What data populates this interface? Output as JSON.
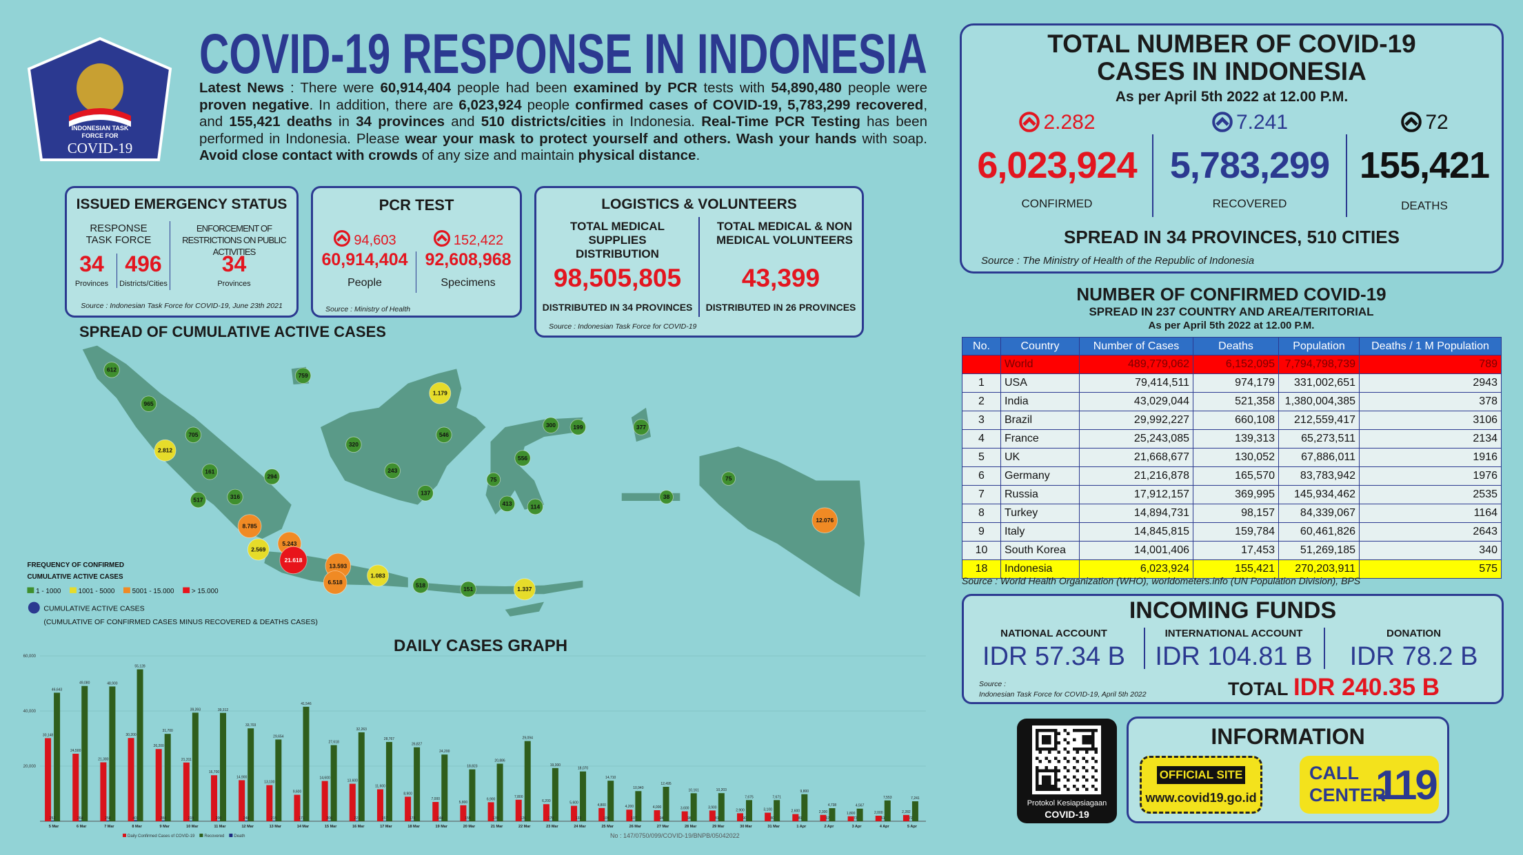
{
  "header": {
    "title": "COVID-19 RESPONSE IN INDONESIA",
    "logo_line_1": "INDONESIAN TASK",
    "logo_line_2": "FORCE FOR",
    "logo_line_3": "COVID-19"
  },
  "news": {
    "segments": [
      {
        "text": "Latest News",
        "bold": true
      },
      {
        "text": " : There were ",
        "bold": false
      },
      {
        "text": "60,914,404",
        "bold": true
      },
      {
        "text": " people had been ",
        "bold": false
      },
      {
        "text": "examined by PCR",
        "bold": true
      },
      {
        "text": " tests with ",
        "bold": false
      },
      {
        "text": "54,890,480",
        "bold": true
      },
      {
        "text": " people were ",
        "bold": false
      },
      {
        "text": "proven negative",
        "bold": true
      },
      {
        "text": ". In addition, there are ",
        "bold": false
      },
      {
        "text": "6,023,924",
        "bold": true
      },
      {
        "text": " people ",
        "bold": false
      },
      {
        "text": "confirmed cases of COVID-19, 5,783,299 recovered",
        "bold": true
      },
      {
        "text": ", and ",
        "bold": false
      },
      {
        "text": "155,421 deaths",
        "bold": true
      },
      {
        "text": " in ",
        "bold": false
      },
      {
        "text": "34 provinces",
        "bold": true
      },
      {
        "text": " and ",
        "bold": false
      },
      {
        "text": "510 districts/cities",
        "bold": true
      },
      {
        "text": " in Indonesia. ",
        "bold": false
      },
      {
        "text": "Real-Time PCR Testing",
        "bold": true
      },
      {
        "text": " has been performed in Indonesia. Please ",
        "bold": false
      },
      {
        "text": "wear your mask to protect yourself and others. Wash your hands",
        "bold": true
      },
      {
        "text": " with soap. ",
        "bold": false
      },
      {
        "text": "Avoid close contact with crowds",
        "bold": true
      },
      {
        "text": " of any size and maintain ",
        "bold": false
      },
      {
        "text": "physical distance",
        "bold": true
      },
      {
        "text": ".",
        "bold": false
      }
    ]
  },
  "emergency": {
    "title": "ISSUED EMERGENCY STATUS",
    "col1_header": "RESPONSE TASK FORCE",
    "col2_header": "ENFORCEMENT OF RESTRICTIONS ON PUBLIC ACTIVITIES",
    "provinces": "34",
    "provinces_label": "Provinces",
    "districts": "496",
    "districts_label": "Districts/Cities",
    "restriction_provinces": "34",
    "restriction_label": "Provinces",
    "source": "Source : Indonesian Task Force for COVID-19, June 23th 2021"
  },
  "pcr": {
    "title": "PCR TEST",
    "people_increase": "94,603",
    "specimen_increase": "152,422",
    "people": "60,914,404",
    "specimens": "92,608,968",
    "people_label": "People",
    "specimens_label": "Specimens",
    "source": "Source : Ministry of Health"
  },
  "logistics": {
    "title": "LOGISTICS & VOLUNTEERS",
    "supplies_header": "TOTAL MEDICAL SUPPLIES DISTRIBUTION",
    "supplies": "98,505,805",
    "supplies_note": "DISTRIBUTED IN 34 PROVINCES",
    "volunteers_header": "TOTAL MEDICAL & NON MEDICAL VOLUNTEERS",
    "volunteers": "43,399",
    "volunteers_note": "DISTRIBUTED IN 26 PROVINCES",
    "source": "Source : Indonesian Task Force for COVID-19"
  },
  "totals": {
    "title_1": "TOTAL NUMBER OF COVID-19",
    "title_2": "CASES IN INDONESIA",
    "subtitle": "As per April 5th 2022 at 12.00 P.M.",
    "stats": [
      {
        "increase": "2.282",
        "value": "6,023,924",
        "label": "CONFIRMED",
        "color": "#e3151f"
      },
      {
        "increase": "7.241",
        "value": "5,783,299",
        "label": "RECOVERED",
        "color": "#2b3990"
      },
      {
        "increase": "72",
        "value": "155,421",
        "label": "DEATHS",
        "color": "#111111"
      }
    ],
    "spread": "SPREAD IN 34 PROVINCES, 510 CITIES",
    "source": "Source : The Ministry of Health of the Republic of Indonesia"
  },
  "map": {
    "title": "SPREAD OF CUMULATIVE ACTIVE CASES",
    "legend": {
      "title_1": "FREQUENCY OF CONFIRMED",
      "title_2": "CUMULATIVE ACTIVE CASES",
      "items": [
        {
          "label": "1 - 1000",
          "color": "#3f8f2e"
        },
        {
          "label": "1001 - 5000",
          "color": "#e6dc2a"
        },
        {
          "label": "5001 - 15.000",
          "color": "#f08a24"
        },
        {
          "label": "> 15.000",
          "color": "#e8141b"
        }
      ],
      "marker_label": "CUMULATIVE ACTIVE CASES",
      "note": "(CUMULATIVE OF CONFIRMED CASES MINUS RECOVERED & DEATHS CASES)"
    },
    "points": [
      {
        "label": "612",
        "color": "#3f8f2e"
      },
      {
        "label": "759",
        "color": "#3f8f2e"
      },
      {
        "label": "965",
        "color": "#3f8f2e"
      },
      {
        "label": "1.179",
        "color": "#e6dc2a"
      },
      {
        "label": "705",
        "color": "#3f8f2e"
      },
      {
        "label": "2.812",
        "color": "#e6dc2a"
      },
      {
        "label": "320",
        "color": "#3f8f2e"
      },
      {
        "label": "546",
        "color": "#3f8f2e"
      },
      {
        "label": "300",
        "color": "#3f8f2e"
      },
      {
        "label": "199",
        "color": "#3f8f2e"
      },
      {
        "label": "377",
        "color": "#3f8f2e"
      },
      {
        "label": "161",
        "color": "#3f8f2e"
      },
      {
        "label": "294",
        "color": "#3f8f2e"
      },
      {
        "label": "243",
        "color": "#3f8f2e"
      },
      {
        "label": "556",
        "color": "#3f8f2e"
      },
      {
        "label": "75",
        "color": "#3f8f2e"
      },
      {
        "label": "75",
        "color": "#3f8f2e"
      },
      {
        "label": "517",
        "color": "#3f8f2e"
      },
      {
        "label": "316",
        "color": "#3f8f2e"
      },
      {
        "label": "137",
        "color": "#3f8f2e"
      },
      {
        "label": "413",
        "color": "#3f8f2e"
      },
      {
        "label": "114",
        "color": "#3f8f2e"
      },
      {
        "label": "38",
        "color": "#3f8f2e"
      },
      {
        "label": "12.076",
        "color": "#f08a24"
      },
      {
        "label": "8.785",
        "color": "#f08a24"
      },
      {
        "label": "5.243",
        "color": "#f08a24"
      },
      {
        "label": "2.569",
        "color": "#e6dc2a"
      },
      {
        "label": "21.618",
        "color": "#e8141b"
      },
      {
        "label": "13.593",
        "color": "#f08a24"
      },
      {
        "label": "6.518",
        "color": "#f08a24"
      },
      {
        "label": "1.083",
        "color": "#e6dc2a"
      },
      {
        "label": "518",
        "color": "#3f8f2e"
      },
      {
        "label": "151",
        "color": "#3f8f2e"
      },
      {
        "label": "1.337",
        "color": "#e6dc2a"
      }
    ]
  },
  "world": {
    "title": "NUMBER OF CONFIRMED COVID-19",
    "subtitle": "SPREAD IN 237 COUNTRY AND AREA/TERITORIAL",
    "date": "As per April 5th 2022 at 12.00 P.M.",
    "table": {
      "header": [
        "No.",
        "Country",
        "Number of Cases",
        "Deaths",
        "Population",
        "Deaths / 1 M Population"
      ],
      "rows": [
        [
          "",
          "World",
          "489,779,062",
          "6,152,095",
          "7,794,798,739",
          "789"
        ],
        [
          "1",
          "USA",
          "79,414,511",
          "974,179",
          "331,002,651",
          "2943"
        ],
        [
          "2",
          "India",
          "43,029,044",
          "521,358",
          "1,380,004,385",
          "378"
        ],
        [
          "3",
          "Brazil",
          "29,992,227",
          "660,108",
          "212,559,417",
          "3106"
        ],
        [
          "4",
          "France",
          "25,243,085",
          "139,313",
          "65,273,511",
          "2134"
        ],
        [
          "5",
          "UK",
          "21,668,677",
          "130,052",
          "67,886,011",
          "1916"
        ],
        [
          "6",
          "Germany",
          "21,216,878",
          "165,570",
          "83,783,942",
          "1976"
        ],
        [
          "7",
          "Russia",
          "17,912,157",
          "369,995",
          "145,934,462",
          "2535"
        ],
        [
          "8",
          "Turkey",
          "14,894,731",
          "98,157",
          "84,339,067",
          "1164"
        ],
        [
          "9",
          "Italy",
          "14,845,815",
          "159,784",
          "60,461,826",
          "2643"
        ],
        [
          "10",
          "South Korea",
          "14,001,406",
          "17,453",
          "51,269,185",
          "340"
        ],
        [
          "18",
          "Indonesia",
          "6,023,924",
          "155,421",
          "270,203,911",
          "575"
        ]
      ]
    },
    "source": "Source : World Health Organization (WHO), worldometers.info (UN Population Division), BPS"
  },
  "funds": {
    "title": "INCOMING FUNDS",
    "accounts": [
      {
        "label": "NATIONAL ACCOUNT",
        "value": "IDR 57.34 B"
      },
      {
        "label": "INTERNATIONAL ACCOUNT",
        "value": "IDR 104.81 B"
      },
      {
        "label": "DONATION",
        "value": "IDR 78.2 B"
      }
    ],
    "total_label": "TOTAL",
    "total": "IDR 240.35 B",
    "source_1": "Source :",
    "source_2": "Indonesian Task Force for COVID-19, April 5th 2022"
  },
  "qr": {
    "line_1": "Protokol Kesiapsiagaan",
    "line_2": "COVID-19"
  },
  "information": {
    "title": "INFORMATION",
    "site_label": "OFFICIAL SITE",
    "site": "www.covid19.go.id",
    "call_1": "CALL",
    "call_2": "CENTER",
    "number": "119"
  },
  "footer": "No : 147/0750/099/COVID-19/BNPB/05042022",
  "chart_data": {
    "type": "bar",
    "title": "DAILY CASES GRAPH",
    "grid": true,
    "categories": [
      "5 Mar",
      "6 Mar",
      "7 Mar",
      "8 Mar",
      "9 Mar",
      "10 Mar",
      "11 Mar",
      "12 Mar",
      "13 Mar",
      "14 Mar",
      "15 Mar",
      "16 Mar",
      "17 Mar",
      "18 Mar",
      "19 Mar",
      "20 Mar",
      "21 Mar",
      "22 Mar",
      "23 Mar",
      "24 Mar",
      "25 Mar",
      "26 Mar",
      "27 Mar",
      "28 Mar",
      "29 Mar",
      "30 Mar",
      "31 Mar",
      "1 Apr",
      "2 Apr",
      "3 Apr",
      "4 Apr",
      "5 Apr"
    ],
    "ylim": [
      0,
      60000
    ],
    "yticks": [
      {
        "value": 20000,
        "label": "20,000"
      },
      {
        "value": 40000,
        "label": "40,000"
      },
      {
        "value": 60000,
        "label": "60,000"
      }
    ],
    "series": [
      {
        "name": "Daily Confirmed Cases of COVID-19",
        "color": "#d9141b",
        "values": [
          30148,
          24500,
          21380,
          30200,
          26200,
          21311,
          16700,
          14900,
          13100,
          9600,
          14600,
          13600,
          11600,
          8900,
          7000,
          5800,
          6900,
          7800,
          6200,
          5600,
          4800,
          4200,
          4000,
          3600,
          3900,
          2900,
          3100,
          2600,
          2300,
          1800,
          2000,
          2282
        ],
        "value_labels": [
          "30,148",
          "24,500",
          "21,380",
          "30,200",
          "26,200",
          "21,311",
          "16,700",
          "14,900",
          "13,100",
          "9,600",
          "14,600",
          "13,600",
          "11,600",
          "8,900",
          "7,000",
          "5,800",
          "6,900",
          "7,800",
          "6,200",
          "5,600",
          "4,800",
          "4,200",
          "4,000",
          "3,600",
          "3,900",
          "2,900",
          "3,100",
          "2,600",
          "2,300",
          "1,800",
          "2,000",
          "2,282"
        ]
      },
      {
        "name": "Recovered",
        "color": "#2f5e1c",
        "values": [
          46643,
          49080,
          48900,
          55128,
          31700,
          39393,
          39312,
          33703,
          29654,
          41546,
          27618,
          32263,
          28767,
          26827,
          24200,
          18823,
          20886,
          29094,
          19300,
          18070,
          14710,
          10940,
          12495,
          10161,
          10203,
          7675,
          7671,
          9800,
          4738,
          4567,
          7553,
          7241
        ],
        "value_labels": [
          "46,643",
          "49,080",
          "48,900",
          "55,128",
          "31,700",
          "39,393",
          "39,312",
          "33,703",
          "29,654",
          "41,546",
          "27,618",
          "32,263",
          "28,767",
          "26,827",
          "24,200",
          "18,823",
          "20,886",
          "29,094",
          "19,300",
          "18,070",
          "14,710",
          "10,940",
          "12,495",
          "10,161",
          "10,203",
          "7,675",
          "7,671",
          "9,800",
          "4,738",
          "4,567",
          "7,553",
          "7,241"
        ]
      },
      {
        "name": "Death",
        "color": "#1e2b80",
        "values": [
          252,
          264,
          258,
          401,
          284,
          219,
          200,
          248,
          215,
          171,
          206,
          221,
          157,
          178,
          144,
          159,
          139,
          126,
          170,
          133,
          109,
          107,
          94,
          98,
          81,
          90,
          80,
          89,
          67,
          73,
          61,
          72
        ]
      }
    ]
  }
}
